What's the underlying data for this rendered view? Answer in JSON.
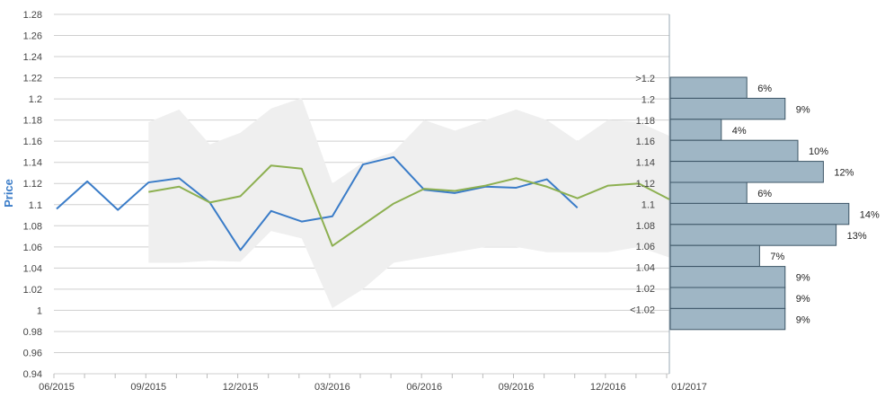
{
  "chart_data": {
    "type": "line",
    "ylabel": "Price",
    "ylim": [
      0.94,
      1.28
    ],
    "y_ticks": [
      "0.94",
      "0.96",
      "0.98",
      "1",
      "1.02",
      "1.04",
      "1.06",
      "1.08",
      "1.1",
      "1.12",
      "1.14",
      "1.16",
      "1.18",
      "1.2",
      "1.22",
      "1.24",
      "1.26",
      "1.28"
    ],
    "x_ticks": [
      "06/2015",
      "09/2015",
      "12/2015",
      "03/2016",
      "06/2016",
      "09/2016",
      "12/2016",
      "01/2017"
    ],
    "grid": true,
    "colors": {
      "series_1": "#3a7cc8",
      "series_2": "#8db051",
      "band": "#efefef",
      "histogram": "#9fb6c5",
      "histogram_edge": "#3c5566"
    },
    "series": [
      {
        "values": [
          1.096,
          1.122,
          1.095,
          1.121,
          1.125,
          1.102,
          1.057,
          1.094,
          1.084,
          1.089,
          1.138,
          1.145,
          1.114,
          1.111,
          1.117,
          1.116,
          1.124,
          1.097
        ]
      },
      {
        "values": [
          null,
          null,
          null,
          1.112,
          1.117,
          1.102,
          1.108,
          1.137,
          1.134,
          1.061,
          1.081,
          1.101,
          1.115,
          1.113,
          1.118,
          1.125,
          1.117,
          1.106,
          1.118,
          1.12,
          1.105
        ]
      }
    ],
    "band": {
      "upper": [
        null,
        null,
        null,
        1.178,
        1.19,
        1.157,
        1.168,
        1.191,
        1.201,
        1.12,
        1.14,
        1.15,
        1.18,
        1.17,
        1.18,
        1.19,
        1.18,
        1.16,
        1.18,
        1.178,
        1.165
      ],
      "lower": [
        null,
        null,
        null,
        1.045,
        1.045,
        1.047,
        1.046,
        1.075,
        1.068,
        1.002,
        1.02,
        1.045,
        1.05,
        1.055,
        1.06,
        1.06,
        1.055,
        1.055,
        1.055,
        1.06,
        1.05
      ]
    },
    "distribution": [
      {
        "label": ">1.2",
        "value": 6,
        "text": "6%"
      },
      {
        "label": "1.2",
        "value": 9,
        "text": "9%"
      },
      {
        "label": "1.18",
        "value": 4,
        "text": "4%"
      },
      {
        "label": "1.16",
        "value": 10,
        "text": "10%"
      },
      {
        "label": "1.14",
        "value": 12,
        "text": "12%"
      },
      {
        "label": "1.12",
        "value": 6,
        "text": "6%"
      },
      {
        "label": "1.1",
        "value": 14,
        "text": "14%"
      },
      {
        "label": "1.08",
        "value": 13,
        "text": "13%"
      },
      {
        "label": "1.06",
        "value": 7,
        "text": "7%"
      },
      {
        "label": "1.04",
        "value": 9,
        "text": "9%"
      },
      {
        "label": "1.02",
        "value": 9,
        "text": "9%"
      },
      {
        "label": "<1.02",
        "value": 9,
        "text": "9%"
      }
    ]
  }
}
